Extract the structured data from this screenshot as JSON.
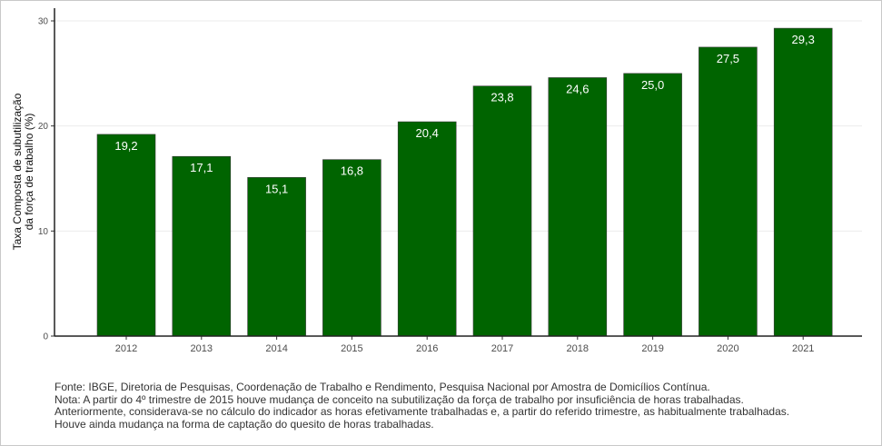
{
  "chart_data": {
    "type": "bar",
    "title": "",
    "xlabel": "",
    "ylabel_lines": [
      "Taxa Composta de subutilização",
      "da força de trabalho (%)"
    ],
    "categories": [
      "2012",
      "2013",
      "2014",
      "2015",
      "2016",
      "2017",
      "2018",
      "2019",
      "2020",
      "2021"
    ],
    "values": [
      19.2,
      17.1,
      15.1,
      16.8,
      20.4,
      23.8,
      24.6,
      25.0,
      27.5,
      29.3
    ],
    "data_labels": [
      "19,2",
      "17,1",
      "15,1",
      "16,8",
      "20,4",
      "23,8",
      "24,6",
      "25,0",
      "27,5",
      "29,3"
    ],
    "yticks": [
      0,
      10,
      20,
      30
    ],
    "ytick_labels": [
      "0",
      "10",
      "20",
      "30"
    ],
    "ylim": [
      0,
      30.6
    ],
    "bar_color": "#006400",
    "grid": true,
    "legend": "none"
  },
  "notes": {
    "source": "Fonte: IBGE, Diretoria de Pesquisas, Coordenação de Trabalho e Rendimento, Pesquisa Nacional por Amostra de Domicílios Contínua.",
    "note_line1": "Nota: A partir do 4º trimestre de 2015 houve mudança de conceito na subutilização da força de trabalho por insuficiência de horas trabalhadas.",
    "note_line2": "Anteriormente, considerava-se no cálculo do indicador as horas efetivamente trabalhadas e, a partir do referido trimestre, as habitualmente trabalhadas.",
    "note_line3": "Houve ainda mudança na forma de captação do quesito de horas trabalhadas."
  }
}
